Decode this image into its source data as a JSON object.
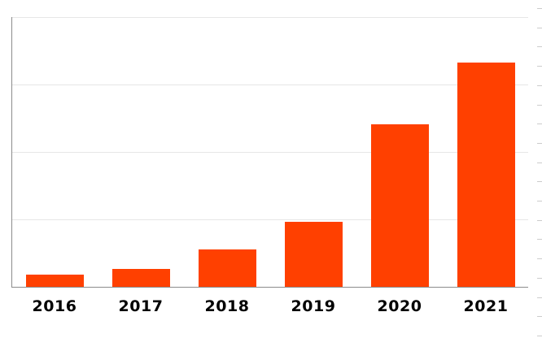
{
  "chart_data": {
    "type": "bar",
    "title": "",
    "xlabel": "",
    "ylabel": "",
    "categories": [
      "2016",
      "2017",
      "2018",
      "2019",
      "2020",
      "2021"
    ],
    "values": [
      0.18,
      0.26,
      0.56,
      0.96,
      2.41,
      3.33
    ],
    "ylim": [
      0,
      4
    ],
    "y_tick_labels_visible": false,
    "gridlines": "horizontal",
    "legend": "none"
  },
  "colors": {
    "bar": "#FF4000",
    "gridline": "#E6E6E6",
    "axis": "#8C8C8C",
    "right_tick": "#CCCCCC",
    "label": "#000000",
    "background": "#FFFFFF"
  }
}
